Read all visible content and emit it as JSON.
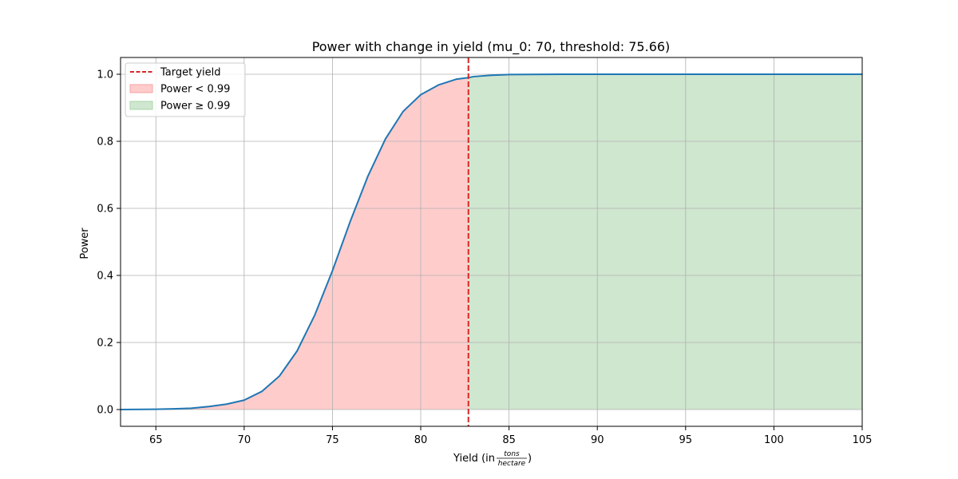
{
  "chart_data": {
    "type": "line",
    "title": "Power with change in yield (mu_0: 70, threshold: 75.66)",
    "xlabel": {
      "prefix": "Yield (in ",
      "numerator": "tons",
      "denominator": "hectare",
      "suffix": ")"
    },
    "ylabel": "Power",
    "xlim": [
      63,
      105
    ],
    "ylim": [
      -0.05,
      1.05
    ],
    "xticks": [
      65,
      70,
      75,
      80,
      85,
      90,
      95,
      100,
      105
    ],
    "yticks": [
      0.0,
      0.2,
      0.4,
      0.6,
      0.8,
      1.0
    ],
    "grid": true,
    "target_yield": 82.7,
    "power_target": 0.99,
    "x": [
      63,
      65,
      66,
      67,
      68,
      69,
      70,
      71,
      72,
      73,
      74,
      75,
      76,
      77,
      78,
      79,
      80,
      81,
      82,
      82.7,
      83,
      84,
      85,
      86,
      88,
      90,
      95,
      100,
      105
    ],
    "series": [
      {
        "values": [
          0.0,
          0.001,
          0.002,
          0.004,
          0.009,
          0.016,
          0.028,
          0.054,
          0.1,
          0.175,
          0.282,
          0.414,
          0.56,
          0.695,
          0.807,
          0.889,
          0.939,
          0.968,
          0.985,
          0.99,
          0.993,
          0.997,
          0.999,
          0.9995,
          1.0,
          1.0,
          1.0,
          1.0,
          1.0
        ],
        "color": "#1f77b4"
      }
    ],
    "fill_regions": [
      {
        "label": "Power < 0.99",
        "x_range": [
          63,
          82.7
        ],
        "color": "#ffcccc"
      },
      {
        "label": "Power ≥ 0.99",
        "x_range": [
          82.7,
          105
        ],
        "color": "#cfe6cf"
      }
    ],
    "legend": {
      "position": "top-left",
      "entries": [
        {
          "label": "Target yield",
          "kind": "dashed-line",
          "color": "#d62728"
        },
        {
          "label": "Power < 0.99",
          "kind": "patch",
          "color": "#ffcccc",
          "edge": "#f4a3a3"
        },
        {
          "label": "Power ≥ 0.99",
          "kind": "patch",
          "color": "#cfe6cf",
          "edge": "#a8d5a8"
        }
      ]
    }
  }
}
